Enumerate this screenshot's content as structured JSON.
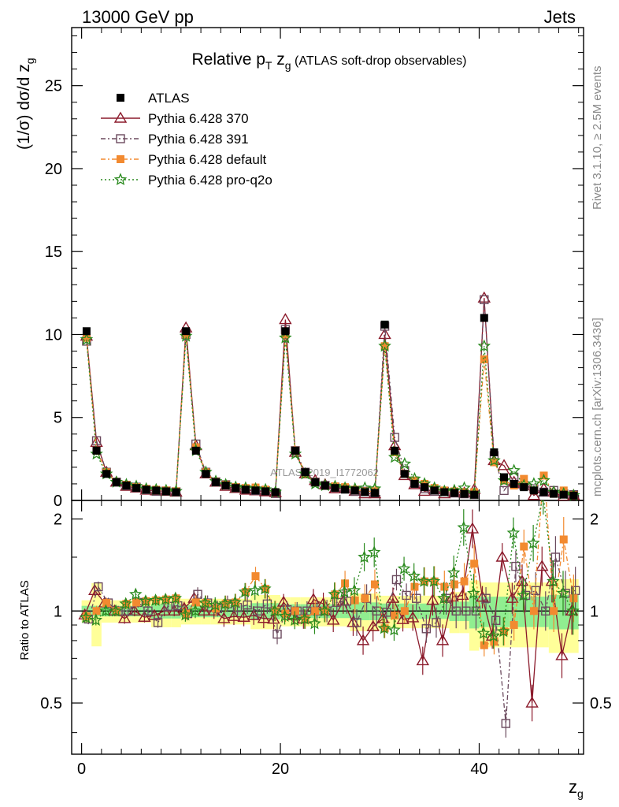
{
  "header": {
    "left": "13000 GeV pp",
    "right": "Jets"
  },
  "title": {
    "prefix": "Relative p",
    "sub_t": "T",
    "z": " z",
    "sub_g": "g",
    "suffix": " (ATLAS soft-drop observables)"
  },
  "ylabel_top": {
    "prefix": "(1/σ) dσ/d z",
    "sub": "g"
  },
  "ylabel_bottom": "Ratio to ATLAS",
  "xlabel": {
    "main": "z",
    "sub": "g"
  },
  "watermark": "ATLAS_2019_I1772062",
  "side_text": {
    "rivet": "Rivet 3.1.10, ≥ 2.5M events",
    "mcplots": "mcplots.cern.ch [arXiv:1306.3436]"
  },
  "legend": {
    "placement": "top-left",
    "entries": [
      {
        "label": "ATLAS",
        "color": "#000000",
        "marker": "filled-square"
      },
      {
        "label": "Pythia 6.428 370",
        "color": "#8b1a2b",
        "marker": "open-triangle",
        "dash": "solid"
      },
      {
        "label": "Pythia 6.428 391",
        "color": "#6b4a5e",
        "marker": "open-square",
        "dash": "dashdot"
      },
      {
        "label": "Pythia 6.428 default",
        "color": "#f28a30",
        "marker": "filled-square",
        "dash": "dashdot"
      },
      {
        "label": "Pythia 6.428 pro-q2o",
        "color": "#2a8a1e",
        "marker": "open-star",
        "dash": "dotted"
      }
    ]
  },
  "chart_data": {
    "type": "scatter",
    "x_range": [
      -1,
      50.5
    ],
    "x_ticks": [
      0,
      20,
      40
    ],
    "main_ylim": [
      0,
      28.5
    ],
    "main_yticks": [
      0,
      5,
      10,
      15,
      20,
      25
    ],
    "ratio_ylim": [
      0.34,
      2.3
    ],
    "ratio_yticks": [
      0.5,
      1,
      2
    ],
    "ratio_ref": 1,
    "x": [
      0.5,
      1.5,
      2.5,
      3.5,
      4.5,
      5.5,
      6.5,
      7.5,
      8.5,
      9.5,
      10.5,
      11.5,
      12.5,
      13.5,
      14.5,
      15.5,
      16.5,
      17.5,
      18.5,
      19.5,
      20.5,
      21.5,
      22.5,
      23.5,
      24.5,
      25.5,
      26.5,
      27.5,
      28.5,
      29.5,
      30.5,
      31.5,
      32.5,
      33.5,
      34.5,
      35.5,
      36.5,
      37.5,
      38.5,
      39.5,
      40.5,
      41.5,
      42.5,
      43.5,
      44.5,
      45.5,
      46.5,
      47.5,
      48.5,
      49.5
    ],
    "atlas": [
      10.2,
      3.0,
      1.6,
      1.1,
      0.9,
      0.75,
      0.65,
      0.6,
      0.55,
      0.5,
      10.2,
      3.0,
      1.6,
      1.1,
      0.9,
      0.75,
      0.65,
      0.6,
      0.55,
      0.5,
      10.2,
      3.0,
      1.7,
      1.1,
      0.9,
      0.75,
      0.65,
      0.6,
      0.5,
      0.45,
      10.6,
      3.0,
      1.6,
      1.0,
      0.8,
      0.6,
      0.5,
      0.45,
      0.4,
      0.35,
      11.0,
      2.9,
      1.4,
      1.0,
      0.8,
      0.6,
      0.5,
      0.4,
      0.35,
      0.3
    ],
    "series": [
      {
        "name": "Pythia 6.428 370",
        "values": [
          9.9,
          3.5,
          1.7,
          1.1,
          0.85,
          0.75,
          0.62,
          0.58,
          0.55,
          0.5,
          10.4,
          3.3,
          1.6,
          1.1,
          0.85,
          0.72,
          0.62,
          0.58,
          0.52,
          0.47,
          10.9,
          2.9,
          1.6,
          1.2,
          0.95,
          0.7,
          0.7,
          0.55,
          0.4,
          0.4,
          10.0,
          3.3,
          1.5,
          0.95,
          0.55,
          0.65,
          0.4,
          0.5,
          0.45,
          0.65,
          12.2,
          2.4,
          2.1,
          1.1,
          1.0,
          0.3,
          0.7,
          0.5,
          0.25,
          0.3
        ]
      },
      {
        "name": "Pythia 6.428 391",
        "values": [
          9.6,
          3.6,
          1.7,
          1.1,
          0.9,
          0.8,
          0.65,
          0.55,
          0.57,
          0.52,
          10.0,
          3.4,
          1.7,
          1.12,
          0.95,
          0.77,
          0.68,
          0.6,
          0.58,
          0.42,
          10.3,
          3.0,
          1.7,
          1.1,
          0.9,
          0.8,
          0.7,
          0.55,
          0.55,
          0.45,
          10.5,
          3.8,
          1.8,
          1.1,
          0.7,
          0.55,
          0.55,
          0.45,
          0.4,
          0.35,
          12.1,
          2.7,
          0.6,
          1.4,
          0.9,
          0.7,
          0.5,
          0.6,
          0.4,
          0.35
        ]
      },
      {
        "name": "Pythia 6.428 default",
        "values": [
          9.8,
          3.0,
          1.7,
          1.1,
          0.95,
          0.8,
          0.7,
          0.65,
          0.6,
          0.55,
          10.0,
          3.2,
          1.7,
          1.12,
          0.95,
          0.8,
          0.75,
          0.78,
          0.65,
          0.5,
          10.0,
          3.0,
          1.6,
          1.1,
          0.9,
          0.85,
          0.8,
          0.65,
          0.55,
          0.55,
          9.3,
          2.9,
          1.6,
          1.2,
          1.0,
          0.75,
          0.6,
          0.55,
          0.5,
          0.5,
          8.5,
          2.3,
          1.2,
          0.9,
          1.3,
          0.6,
          1.5,
          0.4,
          0.6,
          0.33
        ]
      },
      {
        "name": "Pythia 6.428 pro-q2o",
        "values": [
          9.7,
          2.8,
          1.6,
          1.1,
          0.95,
          0.85,
          0.7,
          0.65,
          0.6,
          0.55,
          9.9,
          3.0,
          1.7,
          1.15,
          0.95,
          0.8,
          0.75,
          0.7,
          0.65,
          0.5,
          9.8,
          2.8,
          1.6,
          1.0,
          0.9,
          0.85,
          0.75,
          0.7,
          0.75,
          0.7,
          9.3,
          2.6,
          2.2,
          1.3,
          1.0,
          0.75,
          0.55,
          0.6,
          0.75,
          0.4,
          9.3,
          2.4,
          1.2,
          1.8,
          0.9,
          1.0,
          1.2,
          0.5,
          0.4,
          0.3
        ]
      }
    ]
  }
}
